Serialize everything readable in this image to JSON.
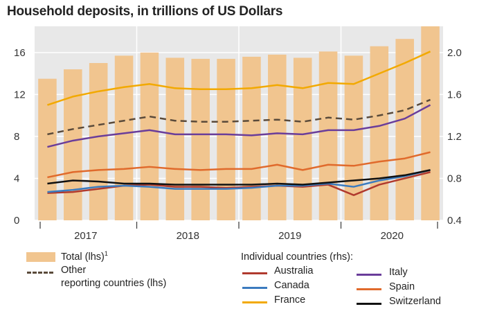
{
  "title": "Household deposits, in trillions of US Dollars",
  "colors": {
    "bars": "#f1c58f",
    "plot_bg": "#e8e8e8",
    "Australia": "#b03a2e",
    "Canada": "#3b7bbf",
    "France": "#f2a900",
    "Italy": "#6a3d9a",
    "Spain": "#e06a2c",
    "Switzerland": "#111111",
    "Other reporting countries": "#5a4a3a"
  },
  "legend": {
    "total_label": "Total (lhs)",
    "total_sup": "1",
    "other_label_line1": "Other",
    "other_label_line2": "reporting countries (lhs)",
    "individual_header": "Individual countries (rhs):",
    "australia": "Australia",
    "canada": "Canada",
    "france": "France",
    "italy": "Italy",
    "spain": "Spain",
    "switzerland": "Switzerland"
  },
  "chart_data": {
    "type": "bar",
    "x": [
      "2017-Q1",
      "2017-Q2",
      "2017-Q3",
      "2017-Q4",
      "2018-Q1",
      "2018-Q2",
      "2018-Q3",
      "2018-Q4",
      "2019-Q1",
      "2019-Q2",
      "2019-Q3",
      "2019-Q4",
      "2020-Q1",
      "2020-Q2",
      "2020-Q3",
      "2020-Q4"
    ],
    "year_labels": [
      "2017",
      "2018",
      "2019",
      "2020"
    ],
    "left_axis": {
      "ylim": [
        0,
        18.5
      ],
      "ticks": [
        0,
        4,
        8,
        12,
        16
      ]
    },
    "right_axis": {
      "ylim": [
        0.4,
        2.25
      ],
      "ticks": [
        0.4,
        0.8,
        1.2,
        1.6,
        2.0
      ],
      "tick_labels": [
        "0.4",
        "0.8",
        "1.2",
        "1.6",
        "2.0"
      ]
    },
    "grid": true,
    "bars": {
      "name": "Total (lhs)",
      "axis": "left",
      "values": [
        13.5,
        14.4,
        15.0,
        15.7,
        16.0,
        15.5,
        15.4,
        15.4,
        15.6,
        15.8,
        15.5,
        16.1,
        15.7,
        16.6,
        17.3,
        18.5
      ]
    },
    "series": [
      {
        "name": "Other reporting countries (lhs)",
        "axis": "left",
        "style": "dashed",
        "values": [
          8.2,
          8.7,
          9.1,
          9.5,
          9.9,
          9.5,
          9.4,
          9.4,
          9.5,
          9.6,
          9.4,
          9.8,
          9.6,
          10.0,
          10.5,
          11.5
        ]
      },
      {
        "name": "Australia",
        "axis": "rhs",
        "values": [
          0.66,
          0.67,
          0.7,
          0.73,
          0.74,
          0.72,
          0.72,
          0.71,
          0.72,
          0.73,
          0.72,
          0.74,
          0.64,
          0.74,
          0.8,
          0.86
        ]
      },
      {
        "name": "Canada",
        "axis": "rhs",
        "values": [
          0.67,
          0.69,
          0.72,
          0.73,
          0.72,
          0.7,
          0.7,
          0.7,
          0.71,
          0.73,
          0.73,
          0.75,
          0.72,
          0.78,
          0.82,
          0.88
        ]
      },
      {
        "name": "France",
        "axis": "rhs",
        "values": [
          1.5,
          1.58,
          1.63,
          1.67,
          1.7,
          1.66,
          1.65,
          1.65,
          1.66,
          1.69,
          1.66,
          1.71,
          1.7,
          1.8,
          1.9,
          2.01
        ]
      },
      {
        "name": "Italy",
        "axis": "rhs",
        "values": [
          1.1,
          1.16,
          1.2,
          1.23,
          1.26,
          1.22,
          1.22,
          1.22,
          1.21,
          1.23,
          1.22,
          1.26,
          1.26,
          1.3,
          1.37,
          1.5
        ]
      },
      {
        "name": "Spain",
        "axis": "rhs",
        "values": [
          0.81,
          0.86,
          0.88,
          0.89,
          0.91,
          0.89,
          0.88,
          0.89,
          0.89,
          0.93,
          0.88,
          0.93,
          0.92,
          0.96,
          0.99,
          1.05
        ]
      },
      {
        "name": "Switzerland",
        "axis": "rhs",
        "values": [
          0.75,
          0.78,
          0.77,
          0.75,
          0.75,
          0.74,
          0.74,
          0.74,
          0.74,
          0.75,
          0.74,
          0.76,
          0.78,
          0.8,
          0.83,
          0.88
        ]
      }
    ]
  }
}
